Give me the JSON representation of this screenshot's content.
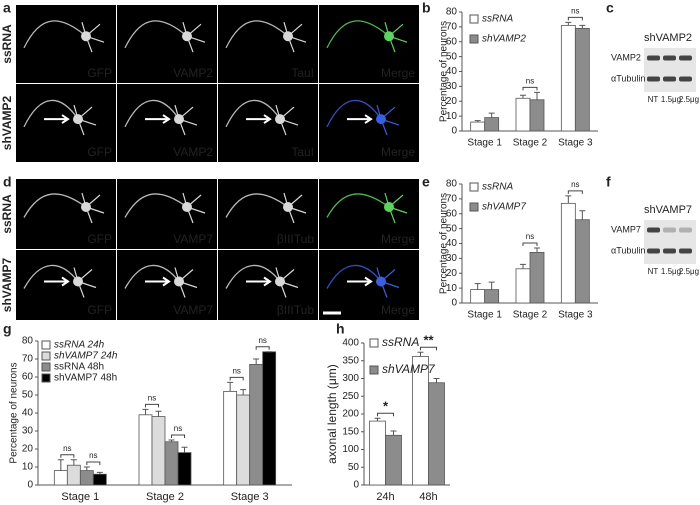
{
  "panel_labels": [
    "a",
    "b",
    "c",
    "d",
    "e",
    "f",
    "g",
    "h"
  ],
  "micrographs": [
    {
      "rows": [
        "ssRNA",
        "shVAMP2"
      ],
      "channels": [
        "GFP",
        "VAMP2",
        "TauI",
        "Merge"
      ],
      "channel_colors": [
        "#3fbf3f",
        "#e03030",
        "#5060e0",
        "#e0e040"
      ]
    },
    {
      "rows": [
        "ssRNA",
        "shVAMP7"
      ],
      "channels": [
        "GFP",
        "VAMP7",
        "βIIITub",
        "Merge"
      ],
      "channel_colors": [
        "#3fbf3f",
        "#e03030",
        "#5060e0",
        "#e0e040"
      ]
    }
  ],
  "blots": [
    {
      "title": "shVAMP2",
      "bands": [
        "VAMP2",
        "αTubulin"
      ],
      "lanes": [
        "NT",
        "1.5μg",
        "2.5μg"
      ]
    },
    {
      "title": "shVAMP7",
      "bands": [
        "VAMP7",
        "αTubulin"
      ],
      "lanes": [
        "NT",
        "1.5μg",
        "2.5μg"
      ]
    }
  ],
  "chart_data": [
    {
      "type": "bar",
      "ylabel": "Percentage of neurons",
      "categories": [
        "Stage 1",
        "Stage 2",
        "Stage 3"
      ],
      "series": [
        {
          "name": "ssRNA",
          "color": "#ffffff",
          "values": [
            6,
            22,
            71
          ],
          "errors": [
            1,
            2,
            2
          ]
        },
        {
          "name": "shVAMP2",
          "color": "#8c8c8c",
          "values": [
            9,
            21,
            69
          ],
          "errors": [
            3,
            5,
            2
          ]
        }
      ],
      "annotations": [
        null,
        "ns",
        "ns"
      ],
      "ylim": [
        0,
        80
      ],
      "yticks": [
        0,
        10,
        20,
        30,
        40,
        50,
        60,
        70,
        80
      ]
    },
    {
      "type": "bar",
      "ylabel": "Percentage of neurons",
      "categories": [
        "Stage 1",
        "Stage 2",
        "Stage 3"
      ],
      "series": [
        {
          "name": "ssRNA",
          "color": "#ffffff",
          "values": [
            9,
            23,
            67
          ],
          "errors": [
            4,
            3,
            5
          ]
        },
        {
          "name": "shVAMP7",
          "color": "#8c8c8c",
          "values": [
            9,
            34,
            56
          ],
          "errors": [
            5,
            3,
            6
          ]
        }
      ],
      "annotations": [
        null,
        "ns",
        "ns"
      ],
      "ylim": [
        0,
        80
      ],
      "yticks": [
        0,
        10,
        20,
        30,
        40,
        50,
        60,
        70,
        80
      ]
    },
    {
      "type": "bar",
      "ylabel": "Percentage of neurons",
      "categories": [
        "Stage 1",
        "Stage 2",
        "Stage 3"
      ],
      "series": [
        {
          "name": "ssRNA 24h",
          "color": "#ffffff",
          "values": [
            8,
            39,
            52
          ],
          "errors": [
            6,
            3,
            5
          ]
        },
        {
          "name": "shVAMP7 24h",
          "color": "#dcdcdc",
          "values": [
            11,
            38,
            50
          ],
          "errors": [
            3,
            3,
            3
          ]
        },
        {
          "name": "ssRNA 48h",
          "color": "#8c8c8c",
          "values": [
            8,
            24,
            67
          ],
          "errors": [
            2,
            1,
            3
          ]
        },
        {
          "name": "shVAMP7 48h",
          "color": "#000000",
          "values": [
            6,
            18,
            74
          ],
          "errors": [
            1,
            3,
            0
          ]
        }
      ],
      "annotations": [
        [
          "ns",
          "ns"
        ],
        [
          "ns",
          "ns"
        ],
        [
          "ns",
          "ns"
        ]
      ],
      "ylim": [
        0,
        80
      ],
      "yticks": [
        0,
        10,
        20,
        30,
        40,
        50,
        60,
        70,
        80
      ]
    },
    {
      "type": "bar",
      "ylabel": "axonal length (μm)",
      "categories": [
        "24h",
        "48h"
      ],
      "series": [
        {
          "name": "ssRNA",
          "color": "#ffffff",
          "values": [
            180,
            362
          ],
          "errors": [
            8,
            12
          ]
        },
        {
          "name": "shVAMP7",
          "color": "#8c8c8c",
          "values": [
            140,
            288
          ],
          "errors": [
            12,
            12
          ]
        }
      ],
      "annotations": [
        "*",
        "**"
      ],
      "ylim": [
        0,
        400
      ],
      "yticks": [
        0,
        50,
        100,
        150,
        200,
        250,
        300,
        350,
        400
      ]
    }
  ]
}
